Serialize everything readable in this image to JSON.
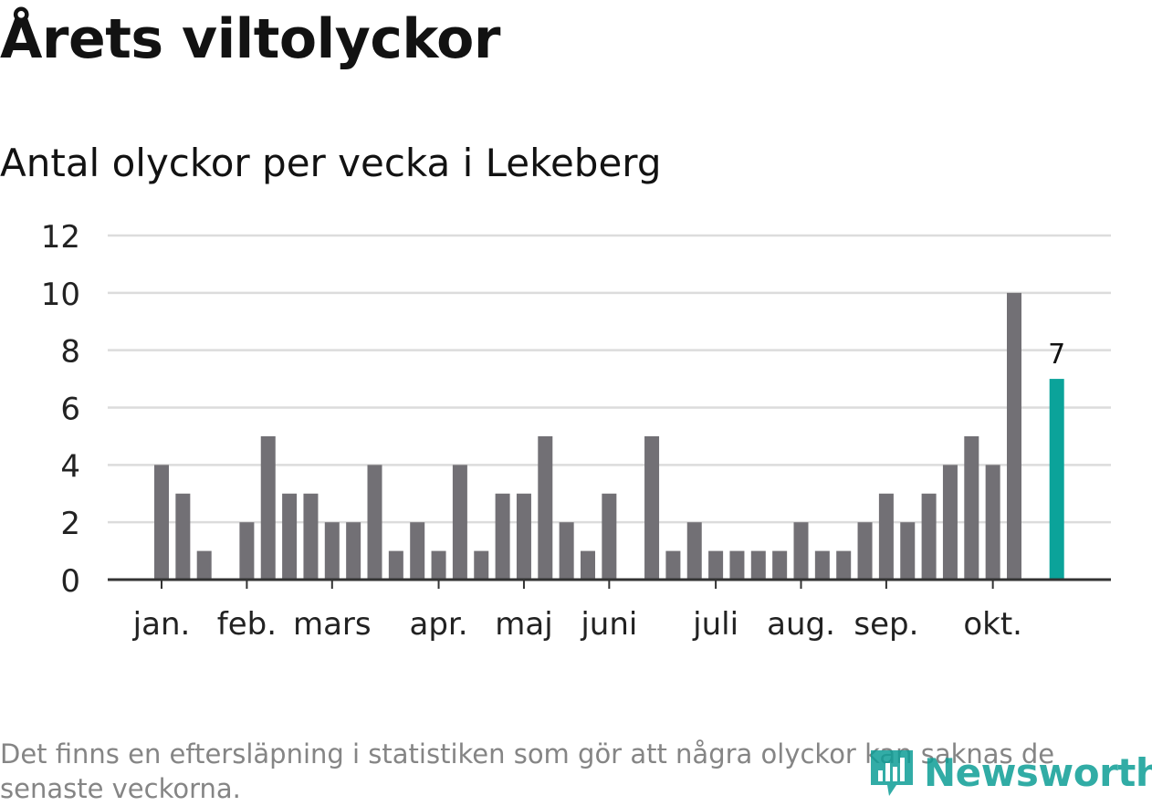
{
  "title": "Årets viltolyckor",
  "subtitle": "Antal olyckor per vecka i Lekeberg",
  "note": "Det finns en eftersläpning i statistiken som gör att några olyckor kan saknas de senaste veckorna.",
  "brand": {
    "name": "Newsworthy",
    "icon": "bar-chart-logo-icon"
  },
  "colors": {
    "bar": "#727075",
    "highlight": "#0ba39a",
    "grid": "#dcdcdc",
    "axis": "#333333",
    "brand": "#0e9e96"
  },
  "chart_data": {
    "type": "bar",
    "title": "Antal olyckor per vecka i Lekeberg",
    "xlabel": "",
    "ylabel": "",
    "ylim": [
      0,
      12
    ],
    "yticks": [
      0,
      2,
      4,
      6,
      8,
      10,
      12
    ],
    "grid": true,
    "weeks": [
      1,
      2,
      3,
      4,
      5,
      6,
      7,
      8,
      9,
      10,
      11,
      12,
      13,
      14,
      15,
      16,
      17,
      18,
      19,
      20,
      21,
      22,
      23,
      24,
      25,
      26,
      27,
      28,
      29,
      30,
      31,
      32,
      33,
      34,
      35,
      36,
      37,
      38,
      39,
      40,
      41,
      42,
      43
    ],
    "values": [
      4,
      3,
      1,
      0,
      2,
      5,
      3,
      3,
      2,
      2,
      4,
      1,
      2,
      1,
      4,
      1,
      3,
      3,
      5,
      2,
      1,
      3,
      0,
      5,
      1,
      2,
      1,
      1,
      1,
      1,
      2,
      1,
      1,
      2,
      3,
      2,
      3,
      4,
      5,
      4,
      10,
      0,
      7
    ],
    "highlight": {
      "week": 43,
      "value": 7,
      "label": "7"
    },
    "month_labels": [
      {
        "label": "jan.",
        "week": 1
      },
      {
        "label": "feb.",
        "week": 5
      },
      {
        "label": "mars",
        "week": 9
      },
      {
        "label": "apr.",
        "week": 14
      },
      {
        "label": "maj",
        "week": 18
      },
      {
        "label": "juni",
        "week": 22
      },
      {
        "label": "juli",
        "week": 27
      },
      {
        "label": "aug.",
        "week": 31
      },
      {
        "label": "sep.",
        "week": 35
      },
      {
        "label": "okt.",
        "week": 40
      }
    ]
  }
}
